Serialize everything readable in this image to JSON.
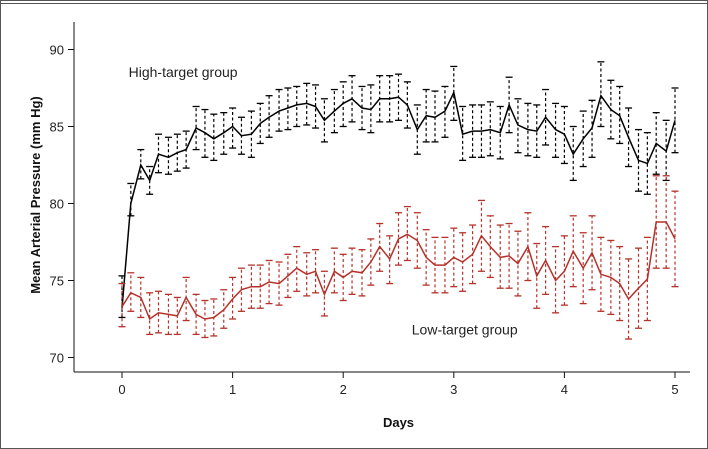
{
  "chart_data": {
    "type": "line",
    "title": "",
    "xlabel": "Days",
    "ylabel": "Mean Arterial Pressure (mm Hg)",
    "xlim": [
      0,
      5
    ],
    "ylim": [
      70,
      90
    ],
    "x_ticks": [
      "0",
      "1",
      "2",
      "3",
      "4",
      "5"
    ],
    "y_ticks": [
      "70",
      "75",
      "80",
      "85",
      "90"
    ],
    "grid": false,
    "error_bars": "dashed",
    "annotations": [
      {
        "text": "High-target group",
        "x": 0.06,
        "y": 88.2,
        "series": "High-target group"
      },
      {
        "text": "Low-target group",
        "x": 2.62,
        "y": 71.5,
        "series": "Low-target group"
      }
    ],
    "series": [
      {
        "name": "High-target group",
        "color": "#000000",
        "points": [
          [
            0.0,
            73.2,
            72.6,
            75.3
          ],
          [
            0.08,
            80.0,
            79.2,
            81.3
          ],
          [
            0.17,
            82.5,
            81.6,
            83.5
          ],
          [
            0.25,
            81.5,
            80.6,
            82.4
          ],
          [
            0.33,
            83.2,
            82.0,
            84.5
          ],
          [
            0.42,
            83.0,
            81.9,
            84.3
          ],
          [
            0.5,
            83.3,
            82.1,
            84.5
          ],
          [
            0.58,
            83.5,
            82.3,
            84.7
          ],
          [
            0.67,
            84.9,
            83.5,
            86.3
          ],
          [
            0.75,
            84.6,
            83.0,
            86.1
          ],
          [
            0.83,
            84.2,
            82.8,
            85.8
          ],
          [
            0.92,
            84.6,
            83.2,
            85.9
          ],
          [
            1.0,
            85.0,
            83.6,
            86.2
          ],
          [
            1.08,
            84.4,
            83.2,
            85.6
          ],
          [
            1.17,
            84.5,
            83.0,
            86.0
          ],
          [
            1.25,
            85.2,
            83.9,
            86.5
          ],
          [
            1.33,
            85.6,
            84.3,
            87.0
          ],
          [
            1.42,
            86.0,
            84.7,
            87.4
          ],
          [
            1.5,
            86.2,
            84.8,
            87.5
          ],
          [
            1.58,
            86.4,
            85.0,
            87.6
          ],
          [
            1.67,
            86.5,
            85.1,
            87.8
          ],
          [
            1.75,
            86.3,
            84.9,
            87.7
          ],
          [
            1.83,
            85.4,
            84.0,
            86.8
          ],
          [
            1.92,
            86.0,
            84.6,
            87.4
          ],
          [
            2.0,
            86.5,
            85.0,
            87.9
          ],
          [
            2.08,
            86.8,
            85.3,
            88.3
          ],
          [
            2.17,
            86.2,
            84.8,
            87.6
          ],
          [
            2.25,
            86.1,
            84.6,
            87.7
          ],
          [
            2.33,
            86.8,
            85.3,
            88.3
          ],
          [
            2.42,
            86.8,
            85.3,
            88.3
          ],
          [
            2.5,
            86.9,
            85.4,
            88.4
          ],
          [
            2.58,
            86.4,
            84.9,
            87.9
          ],
          [
            2.67,
            84.8,
            83.2,
            86.4
          ],
          [
            2.75,
            85.7,
            84.0,
            87.4
          ],
          [
            2.83,
            85.6,
            84.0,
            87.3
          ],
          [
            2.92,
            86.0,
            84.3,
            87.6
          ],
          [
            3.0,
            87.2,
            85.4,
            88.9
          ],
          [
            3.08,
            84.5,
            82.8,
            86.3
          ],
          [
            3.17,
            84.7,
            83.0,
            86.4
          ],
          [
            3.25,
            84.7,
            83.0,
            86.4
          ],
          [
            3.33,
            84.8,
            83.1,
            86.6
          ],
          [
            3.42,
            84.6,
            82.9,
            86.3
          ],
          [
            3.5,
            86.4,
            84.6,
            88.2
          ],
          [
            3.58,
            85.1,
            83.3,
            86.8
          ],
          [
            3.67,
            84.8,
            83.1,
            86.5
          ],
          [
            3.75,
            84.7,
            83.0,
            86.4
          ],
          [
            3.83,
            85.6,
            83.8,
            87.4
          ],
          [
            3.92,
            84.8,
            83.0,
            86.5
          ],
          [
            4.0,
            84.5,
            82.6,
            86.3
          ],
          [
            4.08,
            83.2,
            81.5,
            85.0
          ],
          [
            4.17,
            84.2,
            82.4,
            86.0
          ],
          [
            4.25,
            84.9,
            83.0,
            86.7
          ],
          [
            4.33,
            87.0,
            85.0,
            89.2
          ],
          [
            4.42,
            86.1,
            84.2,
            88.0
          ],
          [
            4.5,
            85.7,
            83.9,
            87.6
          ],
          [
            4.58,
            84.3,
            82.4,
            86.2
          ],
          [
            4.67,
            82.8,
            80.8,
            84.8
          ],
          [
            4.75,
            82.6,
            80.6,
            84.6
          ],
          [
            4.83,
            83.9,
            81.9,
            85.9
          ],
          [
            4.92,
            83.4,
            81.5,
            85.4
          ],
          [
            5.0,
            85.4,
            83.3,
            87.5
          ]
        ]
      },
      {
        "name": "Low-target group",
        "color": "#b5322a",
        "points": [
          [
            0.0,
            73.3,
            72.0,
            74.8
          ],
          [
            0.08,
            74.2,
            73.0,
            75.5
          ],
          [
            0.17,
            73.9,
            72.6,
            75.2
          ],
          [
            0.25,
            72.5,
            71.5,
            74.2
          ],
          [
            0.33,
            72.9,
            71.6,
            74.3
          ],
          [
            0.42,
            72.8,
            71.5,
            74.1
          ],
          [
            0.5,
            72.7,
            71.5,
            73.9
          ],
          [
            0.58,
            73.9,
            72.4,
            75.2
          ],
          [
            0.67,
            72.8,
            71.5,
            74.1
          ],
          [
            0.75,
            72.5,
            71.3,
            73.7
          ],
          [
            0.83,
            72.6,
            71.4,
            73.8
          ],
          [
            0.92,
            73.1,
            71.9,
            74.4
          ],
          [
            1.0,
            73.8,
            72.5,
            75.2
          ],
          [
            1.08,
            74.4,
            73.0,
            75.8
          ],
          [
            1.17,
            74.6,
            73.2,
            76.0
          ],
          [
            1.25,
            74.6,
            73.2,
            76.0
          ],
          [
            1.33,
            74.9,
            73.5,
            76.3
          ],
          [
            1.42,
            74.8,
            73.4,
            76.2
          ],
          [
            1.5,
            75.3,
            73.9,
            76.7
          ],
          [
            1.58,
            75.8,
            74.3,
            77.2
          ],
          [
            1.67,
            75.4,
            74.0,
            76.8
          ],
          [
            1.75,
            75.6,
            74.2,
            77.0
          ],
          [
            1.83,
            74.1,
            72.7,
            75.6
          ],
          [
            1.92,
            75.6,
            74.2,
            77.1
          ],
          [
            2.0,
            75.2,
            73.7,
            76.7
          ],
          [
            2.08,
            75.6,
            74.1,
            77.1
          ],
          [
            2.17,
            75.5,
            74.0,
            77.0
          ],
          [
            2.25,
            76.2,
            74.7,
            77.7
          ],
          [
            2.33,
            77.2,
            75.6,
            78.7
          ],
          [
            2.42,
            76.4,
            74.8,
            77.9
          ],
          [
            2.5,
            77.7,
            76.0,
            79.4
          ],
          [
            2.58,
            78.0,
            76.3,
            79.8
          ],
          [
            2.67,
            77.6,
            75.8,
            79.4
          ],
          [
            2.75,
            76.5,
            74.7,
            78.3
          ],
          [
            2.83,
            76.0,
            74.2,
            77.8
          ],
          [
            2.92,
            76.0,
            74.2,
            77.8
          ],
          [
            3.0,
            76.5,
            74.6,
            78.4
          ],
          [
            3.08,
            76.2,
            74.3,
            78.1
          ],
          [
            3.17,
            76.7,
            74.8,
            78.6
          ],
          [
            3.25,
            77.9,
            75.6,
            80.2
          ],
          [
            3.33,
            77.2,
            75.2,
            79.2
          ],
          [
            3.42,
            76.5,
            74.5,
            78.6
          ],
          [
            3.5,
            76.6,
            74.5,
            78.7
          ],
          [
            3.58,
            76.1,
            74.0,
            78.2
          ],
          [
            3.67,
            77.2,
            75.0,
            79.4
          ],
          [
            3.75,
            75.3,
            73.2,
            77.4
          ],
          [
            3.83,
            76.3,
            74.1,
            78.5
          ],
          [
            3.92,
            75.0,
            72.9,
            77.2
          ],
          [
            4.0,
            75.6,
            73.4,
            77.9
          ],
          [
            4.08,
            76.9,
            74.6,
            79.2
          ],
          [
            4.17,
            75.8,
            73.5,
            78.1
          ],
          [
            4.25,
            76.8,
            74.4,
            79.2
          ],
          [
            4.33,
            75.4,
            73.0,
            77.8
          ],
          [
            4.42,
            75.2,
            72.8,
            77.6
          ],
          [
            4.5,
            74.8,
            72.4,
            77.2
          ],
          [
            4.58,
            73.8,
            71.2,
            76.4
          ],
          [
            4.67,
            74.5,
            71.9,
            77.1
          ],
          [
            4.75,
            75.1,
            72.4,
            77.8
          ],
          [
            4.83,
            78.8,
            75.8,
            81.8
          ],
          [
            4.92,
            78.8,
            75.8,
            81.8
          ],
          [
            5.0,
            77.7,
            74.6,
            80.8
          ]
        ]
      }
    ]
  }
}
